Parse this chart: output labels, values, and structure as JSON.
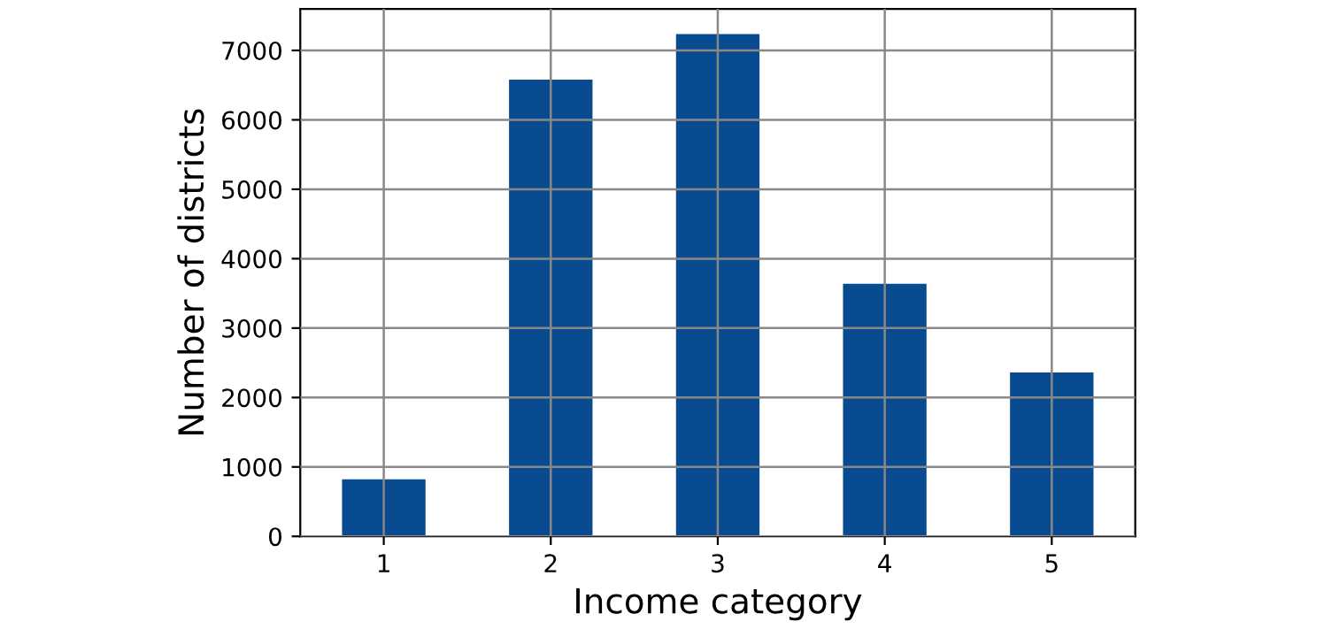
{
  "chart_data": {
    "type": "bar",
    "xlabel": "Income category",
    "ylabel": "Number of districts",
    "categories": [
      "1",
      "2",
      "3",
      "4",
      "5"
    ],
    "values": [
      822,
      6581,
      7236,
      3639,
      2362
    ],
    "color": "#084b91",
    "ylim": [
      0,
      7598
    ],
    "yticks": [
      0,
      1000,
      2000,
      3000,
      4000,
      5000,
      6000,
      7000
    ],
    "grid": true
  }
}
